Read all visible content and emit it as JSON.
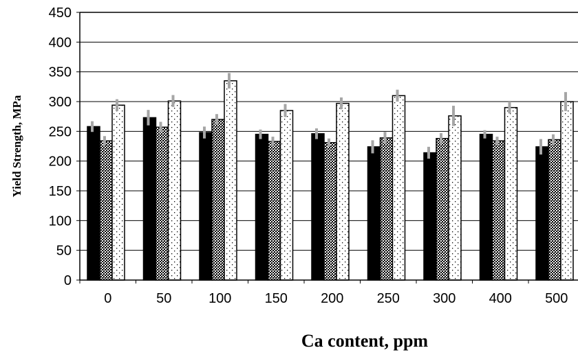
{
  "chart_data": {
    "type": "bar",
    "title": "",
    "xlabel": "Ca content, ppm",
    "ylabel": "Yield Strength, MPa",
    "categories": [
      "0",
      "50",
      "100",
      "150",
      "200",
      "250",
      "300",
      "400",
      "500"
    ],
    "ylim": [
      0,
      450
    ],
    "yticks": [
      0,
      50,
      100,
      150,
      200,
      250,
      300,
      350,
      400,
      450
    ],
    "grid": true,
    "legend": "none",
    "series": [
      {
        "fill": "solid-black",
        "values": [
          258,
          273,
          248,
          245,
          246,
          224,
          214,
          245,
          224
        ],
        "errors": [
          9,
          13,
          10,
          8,
          9,
          11,
          10,
          7,
          13
        ]
      },
      {
        "fill": "dark-crosshatch",
        "values": [
          234,
          257,
          270,
          233,
          231,
          239,
          238,
          234,
          236
        ],
        "errors": [
          8,
          9,
          9,
          8,
          7,
          10,
          9,
          7,
          9
        ]
      },
      {
        "fill": "white-dotted",
        "values": [
          294,
          301,
          335,
          285,
          297,
          310,
          276,
          290,
          300
        ],
        "errors": [
          10,
          10,
          13,
          11,
          10,
          10,
          17,
          10,
          16
        ]
      }
    ],
    "colors": {
      "bar_outline": "#000000",
      "error_bar": "#a6a6a6",
      "grid": "#000000"
    }
  }
}
